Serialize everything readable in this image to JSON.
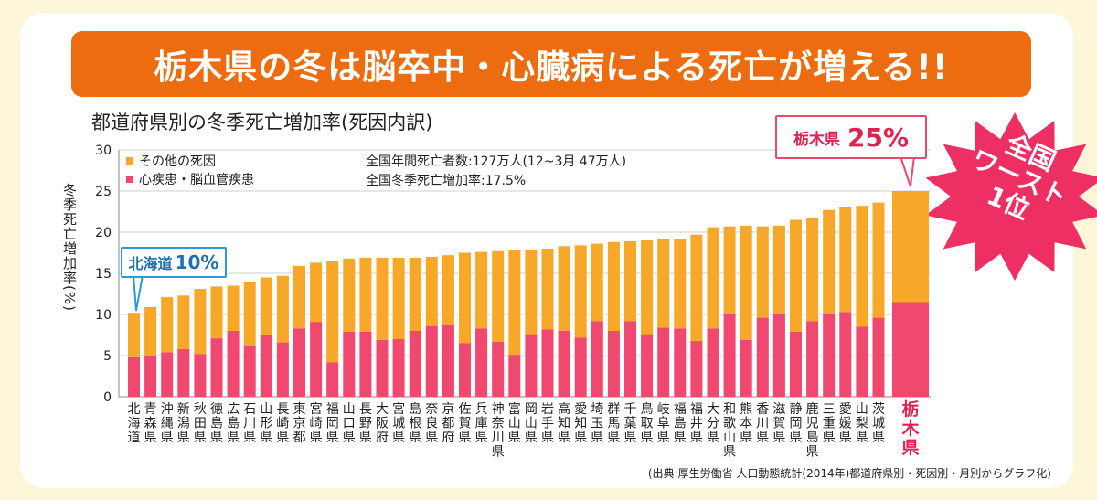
{
  "banner": {
    "title": "栃木県の冬は脳卒中・心臓病による死亡が増える!!"
  },
  "chart_data": {
    "type": "bar",
    "stacked": true,
    "title": "都道府県別の冬季死亡増加率(死因内訳)",
    "ylabel": "冬季死亡増加率(%)",
    "ylim": [
      0,
      30
    ],
    "yticks": [
      0,
      5,
      10,
      15,
      20,
      25,
      30
    ],
    "grid": true,
    "legend_position": "top-left",
    "categories": [
      "北海道",
      "青森県",
      "沖縄県",
      "新潟県",
      "秋田県",
      "徳島県",
      "広島県",
      "石川県",
      "山形県",
      "長崎県",
      "東京都",
      "宮崎県",
      "福岡県",
      "山口県",
      "長野県",
      "大阪府",
      "宮城県",
      "島根県",
      "奈良県",
      "京都府",
      "佐賀県",
      "兵庫県",
      "神奈川県",
      "富山県",
      "岡山県",
      "岩手県",
      "高知県",
      "愛知県",
      "埼玉県",
      "群馬県",
      "千葉県",
      "鳥取県",
      "岐阜県",
      "福島県",
      "福井県",
      "大分県",
      "和歌山県",
      "熊本県",
      "香川県",
      "滋賀県",
      "静岡県",
      "鹿児島県",
      "三重県",
      "愛媛県",
      "山梨県",
      "茨城県",
      "栃木県"
    ],
    "series": [
      {
        "name": "心疾患・脳血管疾患",
        "color": "#f0486e",
        "values": [
          4.8,
          5.0,
          5.4,
          5.8,
          5.2,
          7.1,
          8.0,
          6.2,
          7.5,
          6.6,
          8.3,
          9.1,
          4.2,
          7.9,
          7.9,
          6.9,
          7.0,
          8.0,
          8.6,
          8.7,
          6.5,
          8.3,
          6.7,
          5.1,
          7.6,
          8.2,
          8.0,
          7.2,
          9.2,
          8.0,
          9.2,
          7.6,
          8.4,
          8.3,
          6.8,
          8.3,
          10.1,
          6.9,
          9.6,
          10.1,
          7.9,
          9.2,
          10.1,
          10.3,
          8.5,
          9.6,
          11.5
        ]
      },
      {
        "name": "その他の死因",
        "color": "#f7a828",
        "values": [
          5.4,
          5.9,
          6.7,
          6.5,
          7.9,
          6.3,
          5.5,
          7.7,
          7.0,
          8.1,
          7.6,
          7.2,
          12.3,
          8.9,
          9.0,
          10.0,
          9.9,
          8.9,
          8.4,
          8.5,
          11.0,
          9.3,
          11.0,
          12.7,
          10.2,
          9.8,
          10.3,
          11.2,
          9.4,
          10.8,
          9.7,
          11.4,
          10.8,
          10.9,
          12.9,
          12.3,
          10.6,
          13.9,
          11.1,
          10.7,
          13.6,
          12.5,
          12.6,
          12.7,
          14.7,
          14.0,
          13.5
        ]
      }
    ],
    "totals": [
      10.2,
      10.9,
      12.1,
      12.3,
      13.1,
      13.4,
      13.5,
      13.9,
      14.5,
      14.7,
      15.9,
      16.3,
      16.5,
      16.8,
      16.9,
      16.9,
      16.9,
      16.9,
      17.0,
      17.2,
      17.5,
      17.6,
      17.7,
      17.8,
      17.8,
      18.0,
      18.3,
      18.4,
      18.6,
      18.8,
      18.9,
      19.0,
      19.2,
      19.2,
      19.7,
      20.6,
      20.7,
      20.8,
      20.7,
      20.8,
      21.5,
      21.7,
      22.7,
      23.0,
      23.2,
      23.6,
      25.0
    ],
    "highlight_category": "栃木県",
    "annotations": [
      "全国年間死亡者数:127万人(12~3月 47万人)",
      "全国冬季死亡増加率:17.5%"
    ],
    "callouts": [
      {
        "label": "北海道",
        "value": "10%"
      },
      {
        "label": "栃木県",
        "value": "25%"
      }
    ],
    "burst_text": [
      "全国",
      "ワースト",
      "1位"
    ]
  },
  "source": "(出典:厚生労働省 人口動態統計(2014年)都道府県別・死因別・月別からグラフ化)",
  "colors": {
    "orange_banner": "#ee6c10",
    "cardio": "#f0486e",
    "other": "#f7a828",
    "highlight_text": "#e0224f",
    "blue": "#2b9bd6"
  }
}
